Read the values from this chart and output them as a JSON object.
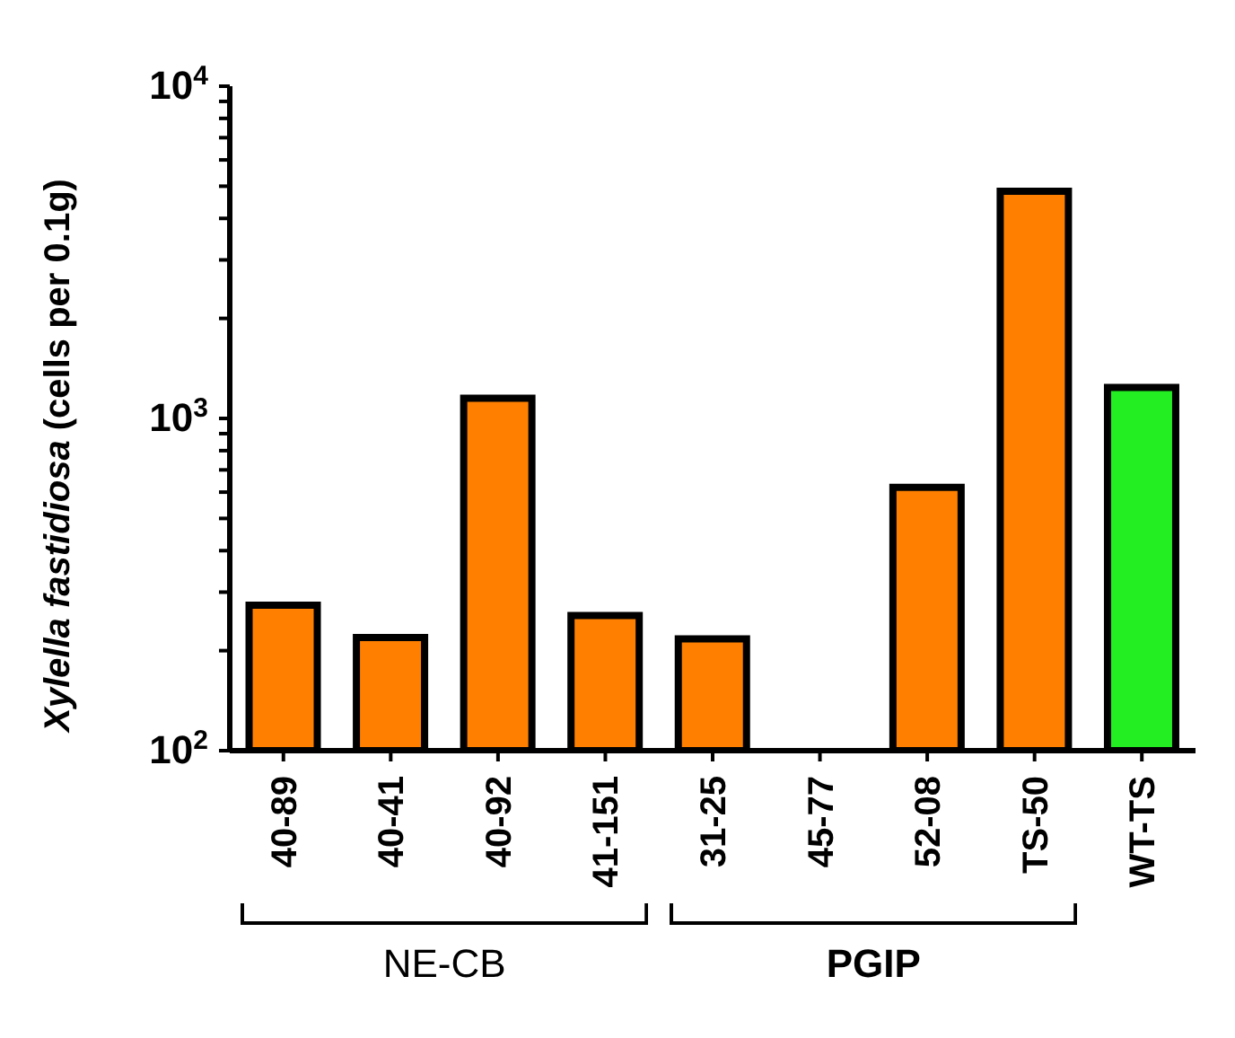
{
  "chart_data": {
    "type": "bar",
    "ylabel": "Xylella fastidiosa (cells per 0.1g)",
    "categories": [
      "40-89",
      "40-41",
      "40-92",
      "41-151",
      "31-25",
      "45-77",
      "52-08",
      "TS-50",
      "WT-TS"
    ],
    "values": [
      274,
      219,
      1150,
      255,
      217,
      null,
      620,
      4830,
      1240
    ],
    "colors": [
      "#ff8000",
      "#ff8000",
      "#ff8000",
      "#ff8000",
      "#ff8000",
      "#ff8000",
      "#ff8000",
      "#ff8000",
      "#22ee22"
    ],
    "log": true,
    "ylim": [
      100,
      10000
    ],
    "yticks": [
      {
        "value": 100,
        "label": "10$^{2}$"
      },
      {
        "value": 200,
        "label": null
      },
      {
        "value": 300,
        "label": null
      },
      {
        "value": 400,
        "label": null
      },
      {
        "value": 500,
        "label": null
      },
      {
        "value": 600,
        "label": null
      },
      {
        "value": 700,
        "label": null
      },
      {
        "value": 800,
        "label": null
      },
      {
        "value": 900,
        "label": null
      },
      {
        "value": 1000,
        "label": "10$^{3}$"
      },
      {
        "value": 2000,
        "label": null
      },
      {
        "value": 3000,
        "label": null
      },
      {
        "value": 4000,
        "label": null
      },
      {
        "value": 5000,
        "label": null
      },
      {
        "value": 6000,
        "label": null
      },
      {
        "value": 7000,
        "label": null
      },
      {
        "value": 8000,
        "label": null
      },
      {
        "value": 9000,
        "label": null
      },
      {
        "value": 10000,
        "label": "10$^{4}$"
      }
    ],
    "grid": false,
    "legend": false,
    "annotations": [
      "NE-CB",
      "PGIP"
    ]
  }
}
